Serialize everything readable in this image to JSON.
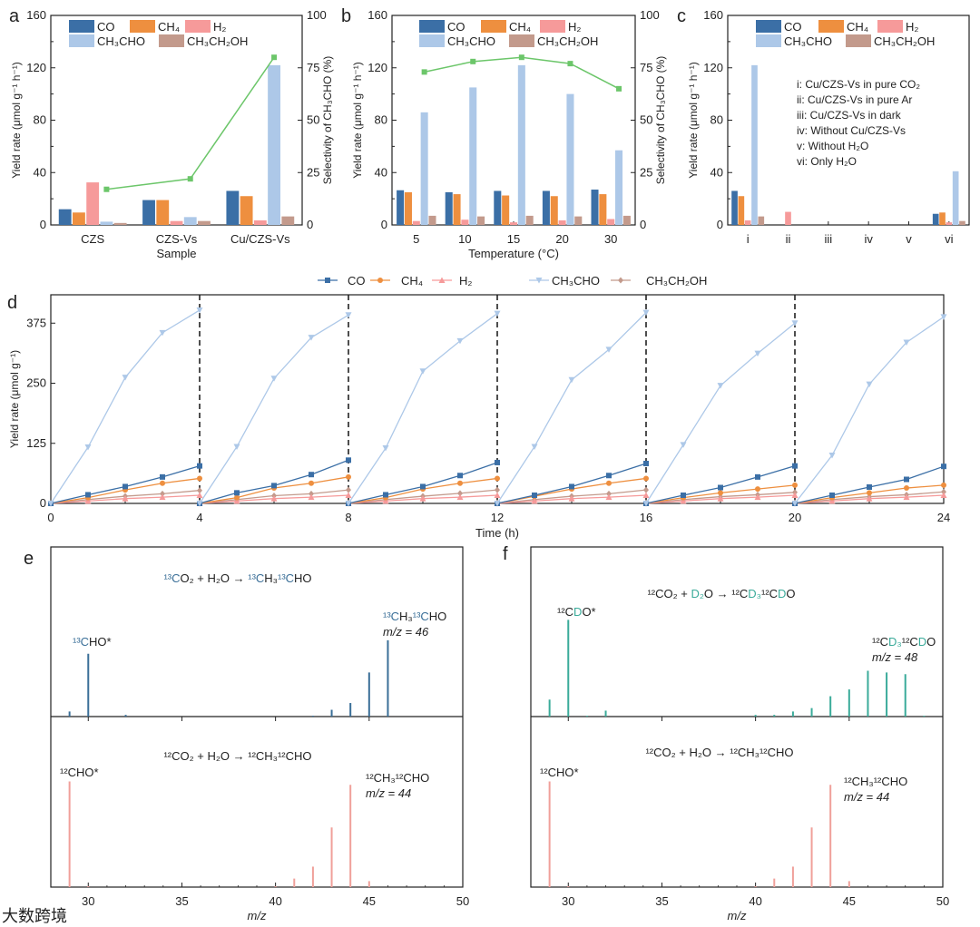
{
  "colors": {
    "CO": "#3b6fa6",
    "CH4": "#ee8f3f",
    "H2": "#f69a9a",
    "CH3CHO": "#adc8e8",
    "CH3CH2OH": "#c39a8c",
    "selectivity": "#6cc66a",
    "c13": "#3a6f98",
    "deut": "#3aab9a",
    "c12": "#f0a09a"
  },
  "species": [
    "CO",
    "CH₄",
    "H₂",
    "CH₃CHO",
    "CH₃CH₂OH"
  ],
  "watermark": "大数跨境",
  "chart_data": [
    {
      "panel": "a",
      "type": "bar",
      "ylabel": "Yield rate (μmol g⁻¹ h⁻¹)",
      "y2label": "Selectivity of CH₃CHO (%)",
      "xlabel": "Sample",
      "ylim": [
        0,
        160
      ],
      "y2lim": [
        0,
        100
      ],
      "yticks": [
        "0",
        "40",
        "80",
        "120",
        "160"
      ],
      "y2ticks": [
        "0",
        "25",
        "50",
        "75",
        "100"
      ],
      "categories": [
        "CZS",
        "CZS-Vs",
        "Cu/CZS-Vs"
      ],
      "series": [
        {
          "name": "CO",
          "values": [
            12,
            19,
            26
          ]
        },
        {
          "name": "CH₄",
          "values": [
            9.5,
            19,
            22
          ]
        },
        {
          "name": "H₂",
          "values": [
            32.5,
            3,
            3.5
          ]
        },
        {
          "name": "CH₃CHO",
          "values": [
            2.5,
            6,
            122
          ]
        },
        {
          "name": "CH₃CH₂OH",
          "values": [
            1.5,
            3,
            6.5
          ]
        }
      ],
      "selectivity": [
        17,
        22,
        80
      ]
    },
    {
      "panel": "b",
      "type": "bar",
      "ylabel": "Yield rate (μmol g⁻¹ h⁻¹)",
      "y2label": "Selectivity of CH₃CHO (%)",
      "xlabel": "Temperature (°C)",
      "ylim": [
        0,
        160
      ],
      "y2lim": [
        0,
        100
      ],
      "yticks": [
        "0",
        "40",
        "80",
        "120",
        "160"
      ],
      "y2ticks": [
        "0",
        "25",
        "50",
        "75",
        "100"
      ],
      "categories": [
        "5",
        "10",
        "15",
        "20",
        "30"
      ],
      "series": [
        {
          "name": "CO",
          "values": [
            26.5,
            25,
            26,
            26,
            27
          ]
        },
        {
          "name": "CH₄",
          "values": [
            25,
            23.5,
            22.5,
            22,
            23.5
          ]
        },
        {
          "name": "H₂",
          "values": [
            3,
            4,
            2,
            3.5,
            4.5
          ]
        },
        {
          "name": "CH₃CHO",
          "values": [
            86,
            105,
            122,
            100,
            57
          ]
        },
        {
          "name": "CH₃CH₂OH",
          "values": [
            7,
            6.5,
            7,
            6.5,
            7
          ]
        }
      ],
      "selectivity": [
        73,
        78,
        80,
        77,
        65
      ]
    },
    {
      "panel": "c",
      "type": "bar",
      "ylabel": "Yield rate (μmol g⁻¹ h⁻¹)",
      "xlabel": "",
      "ylim": [
        0,
        160
      ],
      "yticks": [
        "0",
        "40",
        "80",
        "120",
        "160"
      ],
      "categories": [
        "i",
        "ii",
        "iii",
        "iv",
        "v",
        "vi"
      ],
      "series": [
        {
          "name": "CO",
          "values": [
            26,
            0,
            0,
            0,
            0,
            8.5
          ]
        },
        {
          "name": "CH₄",
          "values": [
            22,
            0,
            0,
            0,
            0,
            9.5
          ]
        },
        {
          "name": "H₂",
          "values": [
            3.5,
            10,
            0,
            0,
            0,
            2
          ]
        },
        {
          "name": "CH₃CHO",
          "values": [
            122,
            0,
            0,
            0,
            0,
            41
          ]
        },
        {
          "name": "CH₃CH₂OH",
          "values": [
            6.5,
            0,
            0,
            0,
            0,
            3
          ]
        }
      ],
      "conditions": [
        "i: Cu/CZS-Vs in pure CO₂",
        "ii: Cu/CZS-Vs in pure Ar",
        "iii: Cu/CZS-Vs in dark",
        "iv: Without Cu/CZS-Vs",
        "v: Without H₂O",
        "vi: Only H₂O"
      ]
    },
    {
      "panel": "d",
      "type": "line",
      "ylabel": "Yield rate (μmol g⁻¹)",
      "xlabel": "Time (h)",
      "xlim": [
        0,
        24
      ],
      "ylim": [
        0,
        434
      ],
      "xticks": [
        "0",
        "4",
        "8",
        "12",
        "16",
        "20",
        "24"
      ],
      "yticks": [
        "0",
        "125",
        "250",
        "375"
      ],
      "cycle_boundaries": [
        4,
        8,
        12,
        16,
        20
      ],
      "cycle_x": [
        0,
        1,
        2,
        3,
        4
      ],
      "series": [
        {
          "name": "CO",
          "marker": "square",
          "cycles": [
            [
              0,
              18,
              35,
              55,
              78
            ],
            [
              0,
              22,
              37,
              60,
              90
            ],
            [
              0,
              18,
              35,
              58,
              85
            ],
            [
              0,
              17,
              35,
              58,
              83
            ],
            [
              0,
              17,
              33,
              55,
              78
            ],
            [
              0,
              17,
              34,
              50,
              77
            ]
          ]
        },
        {
          "name": "CH₄",
          "marker": "circle",
          "cycles": [
            [
              0,
              12,
              28,
              42,
              52
            ],
            [
              0,
              12,
              32,
              42,
              55
            ],
            [
              0,
              12,
              30,
              42,
              52
            ],
            [
              0,
              15,
              30,
              42,
              52
            ],
            [
              0,
              12,
              22,
              30,
              38
            ],
            [
              0,
              12,
              22,
              32,
              38
            ]
          ]
        },
        {
          "name": "H₂",
          "marker": "triangle-up",
          "cycles": [
            [
              0,
              5,
              10,
              13,
              17
            ],
            [
              0,
              5,
              10,
              13,
              17
            ],
            [
              0,
              5,
              10,
              13,
              17
            ],
            [
              0,
              5,
              10,
              13,
              17
            ],
            [
              0,
              5,
              10,
              13,
              17
            ],
            [
              0,
              5,
              10,
              13,
              17
            ]
          ]
        },
        {
          "name": "CH₃CHO",
          "marker": "triangle-down",
          "cycles": [
            [
              0,
              117,
              262,
              355,
              402
            ],
            [
              0,
              118,
              260,
              345,
              392
            ],
            [
              0,
              115,
              275,
              338,
              395
            ],
            [
              0,
              118,
              257,
              320,
              397
            ],
            [
              0,
              122,
              245,
              312,
              375
            ],
            [
              0,
              100,
              248,
              335,
              388
            ]
          ]
        },
        {
          "name": "CH₃CH₂OH",
          "marker": "diamond",
          "cycles": [
            [
              0,
              8,
              15,
              20,
              27
            ],
            [
              0,
              8,
              16,
              20,
              28
            ],
            [
              0,
              8,
              15,
              21,
              28
            ],
            [
              0,
              8,
              15,
              20,
              28
            ],
            [
              0,
              8,
              14,
              18,
              23
            ],
            [
              0,
              8,
              14,
              18,
              24
            ]
          ]
        }
      ]
    },
    {
      "panel": "e",
      "type": "bar",
      "xlabel": "m/z",
      "xlim": [
        28,
        50
      ],
      "xticks": [
        "30",
        "35",
        "40",
        "45",
        "50"
      ],
      "top": {
        "equation": [
          {
            "t": "¹³C",
            "hl": true
          },
          {
            "t": "O₂ + H₂O → ",
            "hl": false
          },
          {
            "t": "¹³C",
            "hl": true
          },
          {
            "t": "H₃",
            "hl": false
          },
          {
            "t": "¹³C",
            "hl": true
          },
          {
            "t": "HO",
            "hl": false
          }
        ],
        "labels": [
          [
            {
              "t": "¹³C",
              "hl": true
            },
            {
              "t": "HO*",
              "hl": false
            }
          ],
          [
            {
              "t": "¹³C",
              "hl": true
            },
            {
              "t": "H₃",
              "hl": false
            },
            {
              "t": "¹³C",
              "hl": true
            },
            {
              "t": "HO",
              "hl": false
            }
          ]
        ],
        "mz_label": "m/z = 46",
        "peaks": [
          [
            29,
            0.03
          ],
          [
            30,
            0.37
          ],
          [
            32,
            0.01
          ],
          [
            42,
            0.005
          ],
          [
            43,
            0.04
          ],
          [
            44,
            0.08
          ],
          [
            45,
            0.26
          ],
          [
            46,
            0.45
          ]
        ]
      },
      "bottom": {
        "equation": [
          {
            "t": "¹²CO₂ + H₂O → ¹²CH₃¹²CHO",
            "hl": false
          }
        ],
        "labels": [
          [
            {
              "t": "¹²CHO*",
              "hl": false
            }
          ],
          [
            {
              "t": "¹²CH₃¹²CHO",
              "hl": false
            }
          ]
        ],
        "mz_label": "m/z = 44",
        "peaks": [
          [
            29,
            0.62
          ],
          [
            30,
            0.005
          ],
          [
            40,
            0.005
          ],
          [
            41,
            0.05
          ],
          [
            42,
            0.12
          ],
          [
            43,
            0.35
          ],
          [
            44,
            0.6
          ],
          [
            45,
            0.035
          ]
        ]
      }
    },
    {
      "panel": "f",
      "type": "bar",
      "xlabel": "m/z",
      "xlim": [
        28,
        50
      ],
      "xticks": [
        "30",
        "35",
        "40",
        "45",
        "50"
      ],
      "top": {
        "equation": [
          {
            "t": "¹²CO₂ + ",
            "hl": false
          },
          {
            "t": "D₂",
            "hl": true
          },
          {
            "t": "O → ¹²C",
            "hl": false
          },
          {
            "t": "D₃",
            "hl": true
          },
          {
            "t": "¹²C",
            "hl": false
          },
          {
            "t": "D",
            "hl": true
          },
          {
            "t": "O",
            "hl": false
          }
        ],
        "labels": [
          [
            {
              "t": "¹²C",
              "hl": false
            },
            {
              "t": "D",
              "hl": true
            },
            {
              "t": "O*",
              "hl": false
            }
          ],
          [
            {
              "t": "¹²C",
              "hl": false
            },
            {
              "t": "D₃",
              "hl": true
            },
            {
              "t": "¹²C",
              "hl": false
            },
            {
              "t": "D",
              "hl": true
            },
            {
              "t": "O",
              "hl": false
            }
          ]
        ],
        "mz_label": "m/z = 48",
        "peaks": [
          [
            29,
            0.1
          ],
          [
            30,
            0.57
          ],
          [
            31,
            0.005
          ],
          [
            32,
            0.035
          ],
          [
            40,
            0.01
          ],
          [
            41,
            0.01
          ],
          [
            42,
            0.03
          ],
          [
            43,
            0.05
          ],
          [
            44,
            0.12
          ],
          [
            45,
            0.16
          ],
          [
            46,
            0.27
          ],
          [
            47,
            0.26
          ],
          [
            48,
            0.25
          ],
          [
            49,
            0.005
          ]
        ]
      },
      "bottom": {
        "equation": [
          {
            "t": "¹²CO₂ + H₂O → ¹²CH₃¹²CHO",
            "hl": false
          }
        ],
        "labels": [
          [
            {
              "t": "¹²CHO*",
              "hl": false
            }
          ],
          [
            {
              "t": "¹²CH₃¹²CHO",
              "hl": false
            }
          ]
        ],
        "mz_label": "m/z = 44",
        "peaks": [
          [
            29,
            0.62
          ],
          [
            30,
            0.005
          ],
          [
            40,
            0.005
          ],
          [
            41,
            0.05
          ],
          [
            42,
            0.12
          ],
          [
            43,
            0.35
          ],
          [
            44,
            0.6
          ],
          [
            45,
            0.035
          ]
        ]
      }
    }
  ]
}
